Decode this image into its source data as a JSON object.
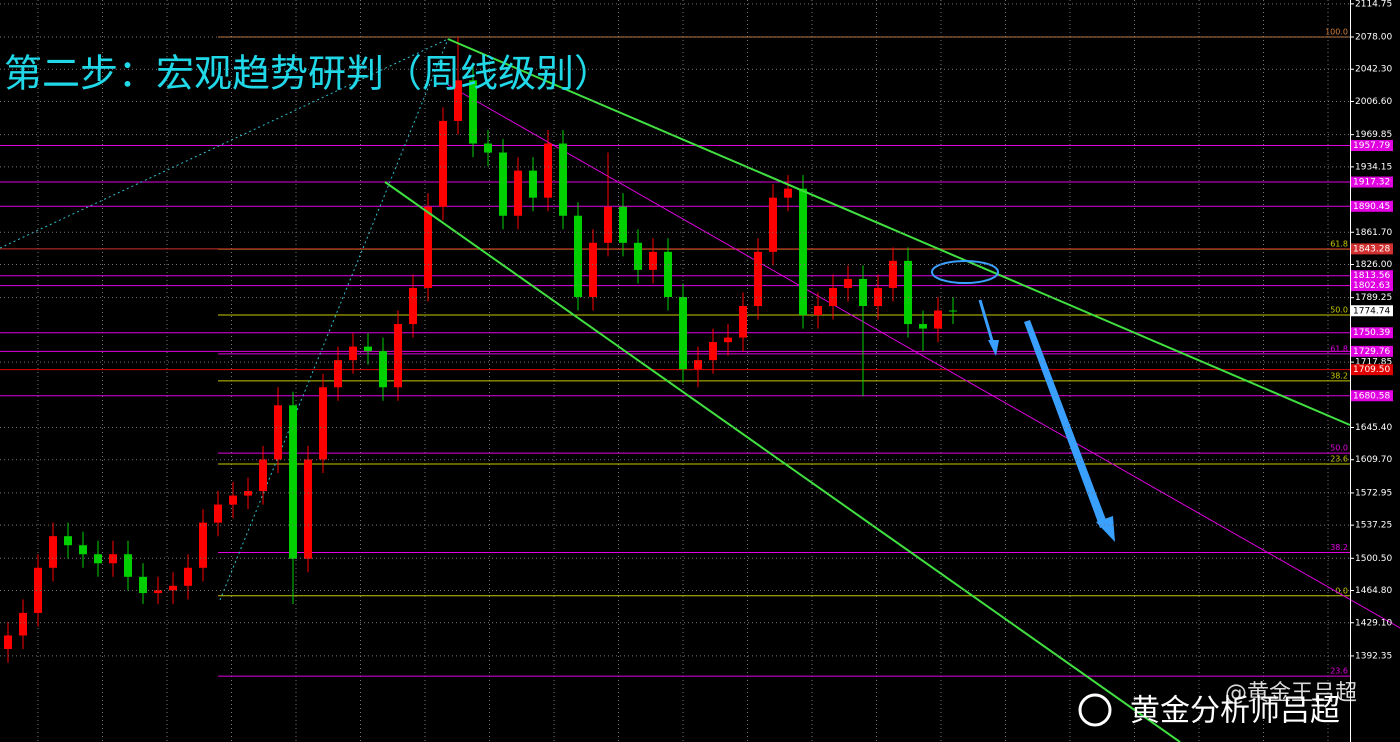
{
  "chart_data": {
    "type": "candlestick",
    "title": "第二步：宏观趋势研判（周线级别）",
    "watermark": [
      "黄金分析师吕超",
      "@黄金王吕超"
    ],
    "up_color": "#ff0000",
    "down_color": "#00d000",
    "grid": true,
    "ylim": [
      1297,
      2119
    ],
    "yticks": [
      2114.75,
      {
        "value": 2078,
        "label": "2078.00"
      },
      {
        "value": 2042.3,
        "label": "2042.30"
      },
      {
        "value": 2006.6,
        "label": "2006.60"
      },
      1969.85,
      1934.15,
      {
        "value": 1861.7,
        "label": "1861.70"
      },
      {
        "value": 1826,
        "label": "1826.00"
      },
      1789.25,
      1717.85,
      {
        "value": 1645.4,
        "label": "1645.40"
      },
      {
        "value": 1609.7,
        "label": "1609.70"
      },
      1572.95,
      1537.25,
      {
        "value": 1500.5,
        "label": "1500.50"
      },
      {
        "value": 1464.8,
        "label": "1464.80"
      },
      {
        "value": 1429.1,
        "label": "1429.10"
      },
      1392.35
    ],
    "open": [
      1400,
      1415,
      1440,
      1490,
      1525,
      1515,
      1505,
      1495,
      1505,
      1480,
      1462,
      1465,
      1470,
      1490,
      1540,
      1560,
      1570,
      1575,
      1610,
      1670,
      1500,
      1610,
      1690,
      1720,
      1735,
      1730,
      1690,
      1760,
      1800,
      1890,
      1985,
      2030,
      1960,
      1950,
      1880,
      1930,
      1900,
      1960,
      1880,
      1790,
      1850,
      1890,
      1850,
      1820,
      1840,
      1790,
      1710,
      1720,
      1740,
      1745,
      1780,
      1840,
      1900,
      1910,
      1770,
      1780,
      1800,
      1810,
      1780,
      1800,
      1830,
      1760,
      1755,
      1775
    ],
    "high": [
      1430,
      1455,
      1505,
      1540,
      1540,
      1530,
      1520,
      1520,
      1520,
      1495,
      1480,
      1485,
      1505,
      1555,
      1575,
      1585,
      1590,
      1625,
      1690,
      1685,
      1625,
      1705,
      1735,
      1750,
      1750,
      1745,
      1775,
      1815,
      1905,
      2000,
      2078,
      2045,
      1975,
      1965,
      1945,
      1945,
      1975,
      1975,
      1895,
      1865,
      1950,
      1905,
      1865,
      1855,
      1855,
      1805,
      1735,
      1755,
      1760,
      1795,
      1855,
      1915,
      1925,
      1925,
      1795,
      1815,
      1825,
      1825,
      1815,
      1845,
      1845,
      1775,
      1790,
      1790
    ],
    "low": [
      1385,
      1400,
      1425,
      1475,
      1500,
      1490,
      1480,
      1480,
      1465,
      1450,
      1450,
      1450,
      1455,
      1475,
      1525,
      1545,
      1555,
      1560,
      1595,
      1450,
      1485,
      1595,
      1675,
      1705,
      1715,
      1675,
      1675,
      1745,
      1785,
      1875,
      1970,
      1945,
      1935,
      1865,
      1865,
      1885,
      1885,
      1865,
      1775,
      1775,
      1835,
      1835,
      1805,
      1805,
      1775,
      1695,
      1690,
      1705,
      1725,
      1730,
      1765,
      1825,
      1885,
      1755,
      1755,
      1765,
      1785,
      1680,
      1765,
      1785,
      1745,
      1730,
      1740,
      1760
    ],
    "close": [
      1415,
      1440,
      1490,
      1525,
      1515,
      1505,
      1495,
      1505,
      1480,
      1462,
      1465,
      1470,
      1490,
      1540,
      1560,
      1570,
      1575,
      1610,
      1670,
      1500,
      1610,
      1690,
      1720,
      1735,
      1730,
      1690,
      1760,
      1800,
      1890,
      1985,
      2030,
      1960,
      1950,
      1880,
      1930,
      1900,
      1960,
      1880,
      1790,
      1850,
      1890,
      1850,
      1820,
      1840,
      1790,
      1710,
      1720,
      1740,
      1745,
      1780,
      1840,
      1900,
      1910,
      1770,
      1780,
      1800,
      1810,
      1780,
      1800,
      1830,
      1760,
      1755,
      1775,
      1774.74
    ],
    "price_levels": [
      {
        "value": 1957.79,
        "color": "#e000e0"
      },
      {
        "value": 1917.32,
        "color": "#e000e0"
      },
      {
        "value": 1890.45,
        "color": "#e000e0"
      },
      {
        "value": 1843.28,
        "color": "#d03030"
      },
      {
        "value": 1813.56,
        "color": "#e000e0"
      },
      {
        "value": 1802.63,
        "color": "#e000e0"
      },
      {
        "value": 1750.39,
        "color": "#e000e0"
      },
      {
        "value": 1729.76,
        "color": "#e000e0"
      },
      {
        "value": {
          "value": 1709.5,
          "label": "1709.50"
        },
        "color": "#e00000"
      },
      {
        "value": 1680.58,
        "color": "#e000e0"
      }
    ],
    "current_price": 1774.74,
    "fib_levels": [
      {
        "label": "100.0",
        "value": 2078,
        "color": "#d08040"
      },
      {
        "label": "61.8",
        "value": 1843,
        "color": "#c8c800"
      },
      {
        "label": "50.0",
        "value": 1770,
        "color": "#c8c800"
      },
      {
        "label": "61.8",
        "value": 1727,
        "color": "#e000e0"
      },
      {
        "label": "38.2",
        "value": 1697,
        "color": "#c8c800"
      },
      {
        "label": "50.0",
        "value": 1617,
        "color": "#e000e0"
      },
      {
        "label": "23.6",
        "value": 1605,
        "color": "#c8c800"
      },
      {
        "label": "38.2",
        "value": 1507,
        "color": "#e000e0"
      },
      {
        "label": "0.0",
        "value": 1459,
        "color": "#c8c800"
      },
      {
        "label": "23.6",
        "value": 1370,
        "color": "#e000e0"
      }
    ]
  }
}
